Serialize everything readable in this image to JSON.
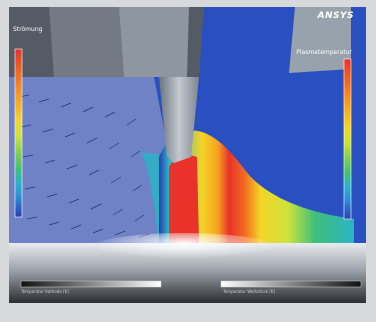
{
  "brand": {
    "logo_text": "ANSYS"
  },
  "legend_left": {
    "title": "Strömung",
    "color_ramp": [
      "#e8322a",
      "#f36b20",
      "#f7a51f",
      "#f3d426",
      "#cde23a",
      "#7fd04b",
      "#3fbf7a",
      "#2bb3c6",
      "#2b8fd6",
      "#2b64c9",
      "#2a3fb3"
    ]
  },
  "legend_right": {
    "title": "Plasmatemperatur",
    "color_ramp": [
      "#e8322a",
      "#f36b20",
      "#f7a51f",
      "#f3d426",
      "#cde23a",
      "#7fd04b",
      "#3fbf7a",
      "#2bb3c6",
      "#2b8fd6",
      "#2b64c9",
      "#2a3fb3"
    ]
  },
  "scale_bars": {
    "left_caption": "Temperatur Kathode [K]",
    "right_caption": "Temperatur Werkstück [K]"
  },
  "colors": {
    "background": "#d7d9da",
    "plasma_field": "#2a4fc0",
    "flow_field": "#6f82c6",
    "electrode": "#9aa3ad",
    "hot_core": "#e8322a"
  }
}
